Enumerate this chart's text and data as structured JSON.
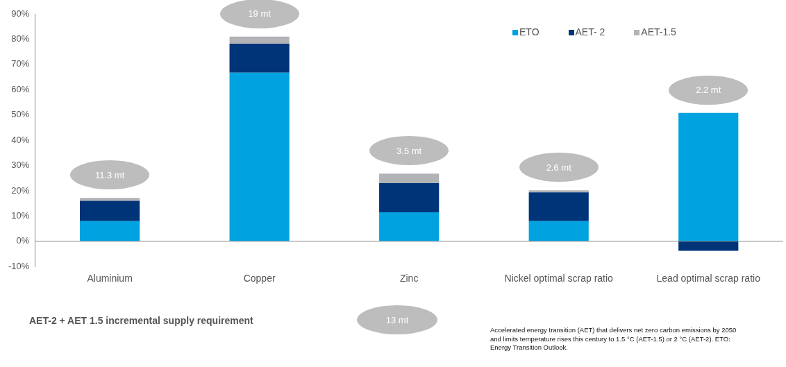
{
  "chart_data": {
    "type": "bar",
    "stacked": true,
    "categories": [
      "Aluminium",
      "Copper",
      "Zinc",
      "Nickel optimal scrap ratio",
      "Lead optimal scrap ratio"
    ],
    "series": [
      {
        "name": "ETO",
        "color": "#00a3e0",
        "values": [
          8,
          66.7,
          11.5,
          8,
          50.8
        ]
      },
      {
        "name": "AET- 2",
        "color": "#003478",
        "values": [
          8,
          11.5,
          11.5,
          11.4,
          -3.8
        ]
      },
      {
        "name": "AET-1.5",
        "color": "#b1b3b6",
        "values": [
          1.2,
          2.8,
          3.8,
          0.8,
          0
        ]
      }
    ],
    "ylim": [
      -10,
      90
    ],
    "yticks": [
      {
        "value": -10,
        "label": "-10%"
      },
      {
        "value": 0,
        "label": "0%"
      },
      {
        "value": 10,
        "label": "10%"
      },
      {
        "value": 20,
        "label": "20%"
      },
      {
        "value": 30,
        "label": "30%"
      },
      {
        "value": 40,
        "label": "40%"
      },
      {
        "value": 50,
        "label": "50%"
      },
      {
        "value": 60,
        "label": "60%"
      },
      {
        "value": 70,
        "label": "70%"
      },
      {
        "value": 80,
        "label": "80%"
      },
      {
        "value": 90,
        "label": "90%"
      }
    ],
    "grid": false,
    "ref_lines": [
      {
        "axis": "y",
        "value": 0,
        "color": "#888888"
      }
    ],
    "legend": "top right",
    "annotations": [
      {
        "text": "11.3 mt",
        "x": "Aluminium",
        "y": 17.2
      },
      {
        "text": "19 mt",
        "x": "Copper",
        "y": 81
      },
      {
        "text": "3.5 mt",
        "x": "Zinc",
        "y": 26.8
      },
      {
        "text": "2.6 mt",
        "x": "Nickel optimal scrap ratio",
        "y": 20.2
      },
      {
        "text": "2.2 mt",
        "x": "Lead optimal scrap ratio",
        "y": 50.8
      },
      "AET-2 + AET 1.5 incremental supply requirement",
      "13 mt",
      "Accelerated energy transition (AET) that delivers net zero carbon emissions by 2050 and limits temperature rises this century to 1.5 °C (AET-1.5) or 2 °C  (AET-2). ETO: Energy Transition Outlook."
    ]
  }
}
